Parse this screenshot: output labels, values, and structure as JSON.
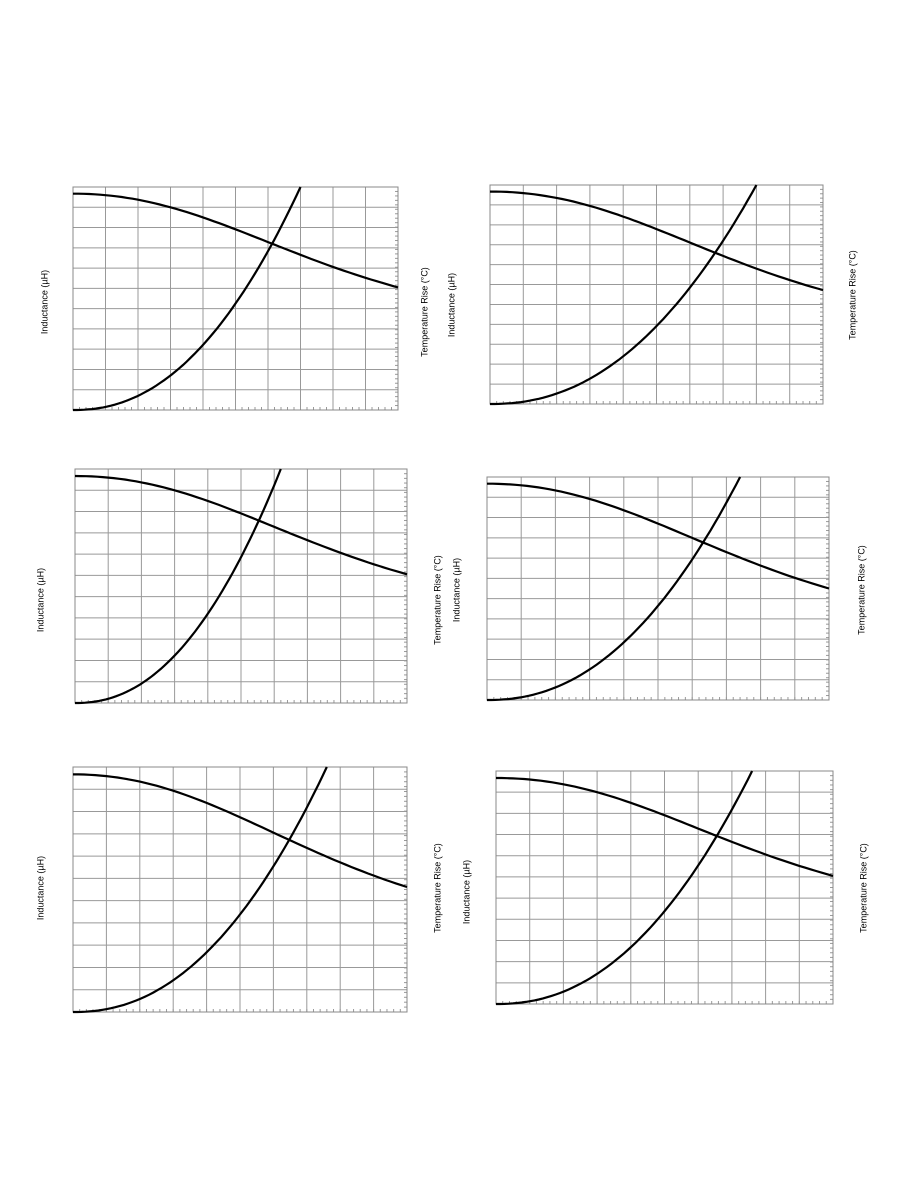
{
  "panels": [
    {
      "y_label": "Inductance (µH)",
      "y2_label": "Temperature Rise (°C)"
    },
    {
      "y_label": "Inductance (µH)",
      "y2_label": "Temperature Rise (°C)"
    },
    {
      "y_label": "Inductance (µH)",
      "y2_label": "Temperature Rise (°C)"
    },
    {
      "y_label": "Inductance (µH)",
      "y2_label": "Temperature Rise (°C)"
    },
    {
      "y_label": "Inductance (µH)",
      "y2_label": "Temperature Rise (°C)"
    },
    {
      "y_label": "Inductance (µH)",
      "y2_label": "Temperature Rise (°C)"
    }
  ]
}
